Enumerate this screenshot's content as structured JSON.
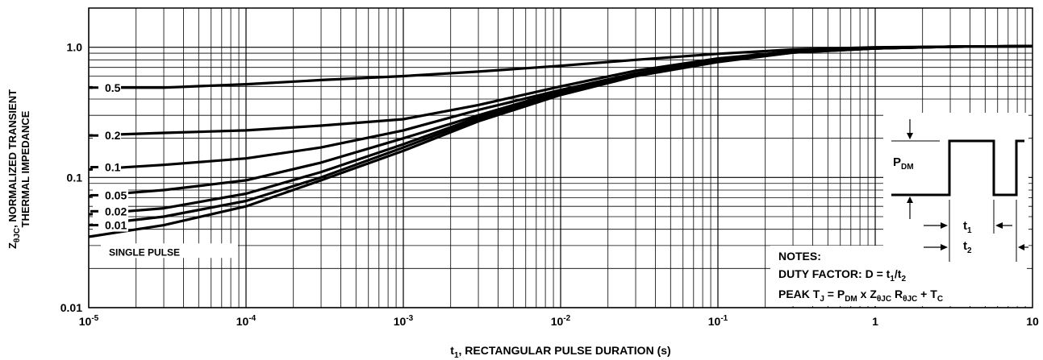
{
  "chart_data": {
    "type": "line",
    "title": "",
    "xlabel": {
      "prefix": "t",
      "sub": "1",
      "rest": ", RECTANGULAR PULSE DURATION (s)"
    },
    "ylabel": {
      "line1_prefix": "Z",
      "line1_sub": "θJC",
      "line1_rest": ", NORMALIZED TRANSIENT",
      "line2": "THERMAL IMPEDANCE"
    },
    "x_scale": "log",
    "y_scale": "log",
    "xlim": [
      1e-05,
      10
    ],
    "ylim": [
      0.01,
      2.0
    ],
    "grid": true,
    "x_ticks": [
      {
        "value": 1e-05,
        "base": "10",
        "exp": "-5"
      },
      {
        "value": 0.0001,
        "base": "10",
        "exp": "-4"
      },
      {
        "value": 0.001,
        "base": "10",
        "exp": "-3"
      },
      {
        "value": 0.01,
        "base": "10",
        "exp": "-2"
      },
      {
        "value": 0.1,
        "base": "10",
        "exp": "-1"
      },
      {
        "value": 1,
        "base": "1",
        "exp": ""
      },
      {
        "value": 10,
        "base": "10",
        "exp": ""
      }
    ],
    "y_ticks": [
      {
        "value": 0.01,
        "label": "0.01"
      },
      {
        "value": 0.1,
        "label": "0.1"
      },
      {
        "value": 1.0,
        "label": "1.0"
      }
    ],
    "series": [
      {
        "name": "0.5",
        "x": [
          1e-05,
          3e-05,
          0.0001,
          0.0003,
          0.001,
          0.003,
          0.01,
          0.03,
          0.1,
          0.3,
          1,
          3,
          10
        ],
        "y": [
          0.49,
          0.49,
          0.52,
          0.56,
          0.6,
          0.65,
          0.72,
          0.8,
          0.89,
          0.96,
          1.0,
          1.01,
          1.02
        ]
      },
      {
        "name": "0.2",
        "x": [
          1e-05,
          3e-05,
          0.0001,
          0.0003,
          0.001,
          0.003,
          0.01,
          0.03,
          0.1,
          0.3,
          1,
          3,
          10
        ],
        "y": [
          0.21,
          0.22,
          0.23,
          0.25,
          0.28,
          0.36,
          0.5,
          0.66,
          0.82,
          0.93,
          0.99,
          1.01,
          1.02
        ]
      },
      {
        "name": "0.1",
        "x": [
          1e-05,
          3e-05,
          0.0001,
          0.0003,
          0.001,
          0.003,
          0.01,
          0.03,
          0.1,
          0.3,
          1,
          3,
          10
        ],
        "y": [
          0.115,
          0.125,
          0.14,
          0.17,
          0.23,
          0.33,
          0.47,
          0.63,
          0.8,
          0.92,
          0.99,
          1.01,
          1.02
        ]
      },
      {
        "name": "0.05",
        "x": [
          1e-05,
          3e-05,
          0.0001,
          0.0003,
          0.001,
          0.003,
          0.01,
          0.03,
          0.1,
          0.3,
          1,
          3,
          10
        ],
        "y": [
          0.072,
          0.08,
          0.095,
          0.13,
          0.2,
          0.3,
          0.46,
          0.62,
          0.79,
          0.92,
          0.98,
          1.01,
          1.02
        ]
      },
      {
        "name": "0.02",
        "x": [
          1e-05,
          3e-05,
          0.0001,
          0.0003,
          0.001,
          0.003,
          0.01,
          0.03,
          0.1,
          0.3,
          1,
          3,
          10
        ],
        "y": [
          0.052,
          0.058,
          0.075,
          0.11,
          0.18,
          0.29,
          0.45,
          0.62,
          0.79,
          0.92,
          0.98,
          1.01,
          1.02
        ]
      },
      {
        "name": "0.01",
        "x": [
          1e-05,
          3e-05,
          0.0001,
          0.0003,
          0.001,
          0.003,
          0.01,
          0.03,
          0.1,
          0.3,
          1,
          3,
          10
        ],
        "y": [
          0.043,
          0.05,
          0.066,
          0.1,
          0.17,
          0.28,
          0.44,
          0.61,
          0.78,
          0.91,
          0.98,
          1.01,
          1.02
        ]
      },
      {
        "name": "SINGLE PULSE",
        "x": [
          1e-05,
          3e-05,
          0.0001,
          0.0003,
          0.001,
          0.003,
          0.01,
          0.03,
          0.1,
          0.3,
          1,
          3,
          10
        ],
        "y": [
          0.035,
          0.043,
          0.06,
          0.095,
          0.16,
          0.27,
          0.43,
          0.6,
          0.77,
          0.91,
          0.98,
          1.01,
          1.02
        ]
      }
    ],
    "series_label_values": [
      0.49,
      0.21,
      0.12,
      0.073,
      0.055,
      0.043,
      0.027
    ],
    "notes": {
      "header": "NOTES:",
      "duty_prefix": "DUTY FACTOR: D = t",
      "duty_sub1": "1",
      "duty_mid": "/t",
      "duty_sub2": "2",
      "peak_prefix": "PEAK T",
      "peak_sub_j": "J",
      "peak_eq": " = P",
      "peak_sub_dm": "DM",
      "peak_x": " x Z",
      "peak_sub_theta": "θJC",
      "peak_r": " R",
      "peak_sub_rtheta": "θJC",
      "peak_plus": " + T",
      "peak_sub_c": "C"
    },
    "waveform": {
      "pdm": "P",
      "pdm_sub": "DM",
      "t1": "t",
      "t1_sub": "1",
      "t2": "t",
      "t2_sub": "2"
    }
  }
}
